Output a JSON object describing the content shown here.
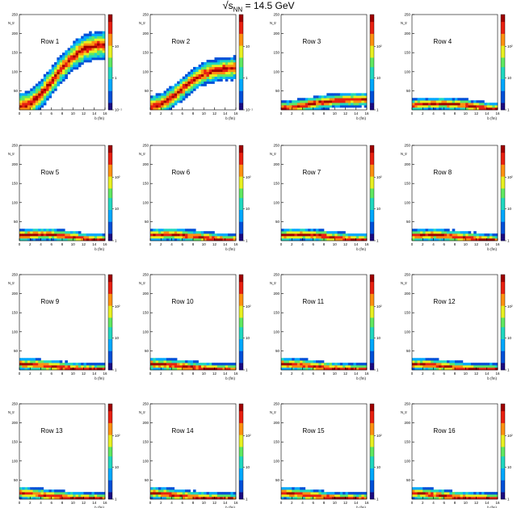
{
  "figure": {
    "title_symbol": "s",
    "title_subscript": "NN",
    "title_value": "= 14.5 GeV"
  },
  "chart_data": {
    "type": "heatmap",
    "grid": "off",
    "xlabel": "b (fm)",
    "ylabel": "N_tr",
    "xlim": [
      0,
      16
    ],
    "ylim": [
      0,
      250
    ],
    "x_ticks": [
      "0",
      "2",
      "4",
      "6",
      "8",
      "10",
      "12",
      "14",
      "16"
    ],
    "y_ticks": [
      "50",
      "100",
      "150",
      "200",
      "250"
    ],
    "colorbar_scale": "log",
    "colorbar_colors": [
      "#1a0a80",
      "#0050d8",
      "#00a8ff",
      "#20d8c0",
      "#60e860",
      "#e8f020",
      "#ff9010",
      "#e82010",
      "#a00000"
    ],
    "panels": [
      {
        "label": "Row 1",
        "cb_ticks": [
          "10",
          "1",
          "10⁻¹"
        ],
        "cb_decades": [
          2,
          1,
          0,
          -1
        ],
        "peak": [
          [
            0,
            8
          ],
          [
            2,
            15
          ],
          [
            4,
            40
          ],
          [
            6,
            75
          ],
          [
            8,
            110
          ],
          [
            10,
            140
          ],
          [
            12,
            160
          ],
          [
            14,
            168
          ],
          [
            16,
            170
          ]
        ],
        "width": 16
      },
      {
        "label": "Row 2",
        "cb_ticks": [
          "10",
          "1",
          "10⁻¹"
        ],
        "cb_decades": [
          2,
          1,
          0,
          -1
        ],
        "peak": [
          [
            0,
            8
          ],
          [
            2,
            14
          ],
          [
            4,
            32
          ],
          [
            6,
            55
          ],
          [
            8,
            78
          ],
          [
            10,
            95
          ],
          [
            12,
            103
          ],
          [
            14,
            108
          ],
          [
            16,
            110
          ]
        ],
        "width": 13
      },
      {
        "label": "Row 3",
        "cb_ticks": [
          "10²",
          "10",
          "1"
        ],
        "cb_decades": [
          3,
          2,
          1,
          0
        ],
        "peak": [
          [
            0,
            4
          ],
          [
            2,
            7
          ],
          [
            4,
            12
          ],
          [
            6,
            17
          ],
          [
            8,
            21
          ],
          [
            10,
            24
          ],
          [
            12,
            26
          ],
          [
            14,
            27
          ],
          [
            16,
            27
          ]
        ],
        "width": 8
      },
      {
        "label": "Row 4",
        "cb_ticks": [
          "10²",
          "10",
          "1"
        ],
        "cb_decades": [
          3,
          2,
          1,
          0
        ],
        "peak": [
          [
            0,
            12
          ],
          [
            2,
            15
          ],
          [
            4,
            17
          ],
          [
            6,
            16
          ],
          [
            8,
            15
          ],
          [
            10,
            12
          ],
          [
            12,
            8
          ],
          [
            14,
            4
          ],
          [
            16,
            2
          ]
        ],
        "width": 7
      },
      {
        "label": "Row 5",
        "cb_ticks": [
          "10²",
          "10",
          "1"
        ],
        "cb_decades": [
          3,
          2,
          1,
          0
        ],
        "peak": [
          [
            0,
            14
          ],
          [
            2,
            16
          ],
          [
            4,
            17
          ],
          [
            6,
            16
          ],
          [
            8,
            13
          ],
          [
            10,
            10
          ],
          [
            12,
            6
          ],
          [
            14,
            3
          ],
          [
            16,
            1
          ]
        ],
        "width": 7
      },
      {
        "label": "Row 6",
        "cb_ticks": [
          "10²",
          "10",
          "1"
        ],
        "cb_decades": [
          3,
          2,
          1,
          0
        ],
        "peak": [
          [
            0,
            14
          ],
          [
            2,
            16
          ],
          [
            4,
            17
          ],
          [
            6,
            15
          ],
          [
            8,
            12
          ],
          [
            10,
            9
          ],
          [
            12,
            5
          ],
          [
            14,
            2
          ],
          [
            16,
            1
          ]
        ],
        "width": 7
      },
      {
        "label": "Row 7",
        "cb_ticks": [
          "10²",
          "10",
          "1"
        ],
        "cb_decades": [
          3,
          2,
          1,
          0
        ],
        "peak": [
          [
            0,
            14
          ],
          [
            2,
            16
          ],
          [
            4,
            16
          ],
          [
            6,
            15
          ],
          [
            8,
            12
          ],
          [
            10,
            9
          ],
          [
            12,
            5
          ],
          [
            14,
            2
          ],
          [
            16,
            1
          ]
        ],
        "width": 7
      },
      {
        "label": "Row 8",
        "cb_ticks": [
          "10²",
          "10",
          "1"
        ],
        "cb_decades": [
          3,
          2,
          1,
          0
        ],
        "peak": [
          [
            0,
            13
          ],
          [
            2,
            15
          ],
          [
            4,
            16
          ],
          [
            6,
            14
          ],
          [
            8,
            11
          ],
          [
            10,
            8
          ],
          [
            12,
            5
          ],
          [
            14,
            2
          ],
          [
            16,
            1
          ]
        ],
        "width": 7
      },
      {
        "label": "Row 9",
        "cb_ticks": [
          "10²",
          "10",
          "1"
        ],
        "cb_decades": [
          3,
          2,
          1,
          0
        ],
        "peak": [
          [
            0,
            16
          ],
          [
            2,
            15
          ],
          [
            4,
            13
          ],
          [
            6,
            10
          ],
          [
            8,
            7
          ],
          [
            10,
            4
          ],
          [
            12,
            2
          ],
          [
            14,
            1
          ],
          [
            16,
            1
          ]
        ],
        "width": 7
      },
      {
        "label": "Row 10",
        "cb_ticks": [
          "10²",
          "10",
          "1"
        ],
        "cb_decades": [
          3,
          2,
          1,
          0
        ],
        "peak": [
          [
            0,
            16
          ],
          [
            2,
            15
          ],
          [
            4,
            13
          ],
          [
            6,
            10
          ],
          [
            8,
            7
          ],
          [
            10,
            4
          ],
          [
            12,
            2
          ],
          [
            14,
            1
          ],
          [
            16,
            1
          ]
        ],
        "width": 7
      },
      {
        "label": "Row 11",
        "cb_ticks": [
          "10²",
          "10",
          "1"
        ],
        "cb_decades": [
          3,
          2,
          1,
          0
        ],
        "peak": [
          [
            0,
            16
          ],
          [
            2,
            15
          ],
          [
            4,
            13
          ],
          [
            6,
            10
          ],
          [
            8,
            7
          ],
          [
            10,
            4
          ],
          [
            12,
            2
          ],
          [
            14,
            1
          ],
          [
            16,
            1
          ]
        ],
        "width": 7
      },
      {
        "label": "Row 12",
        "cb_ticks": [
          "10²",
          "10",
          "1"
        ],
        "cb_decades": [
          3,
          2,
          1,
          0
        ],
        "peak": [
          [
            0,
            16
          ],
          [
            2,
            15
          ],
          [
            4,
            13
          ],
          [
            6,
            10
          ],
          [
            8,
            7
          ],
          [
            10,
            4
          ],
          [
            12,
            2
          ],
          [
            14,
            1
          ],
          [
            16,
            1
          ]
        ],
        "width": 7
      },
      {
        "label": "Row 13",
        "cb_ticks": [
          "10²",
          "10",
          "1"
        ],
        "cb_decades": [
          3,
          2,
          1,
          0
        ],
        "peak": [
          [
            0,
            17
          ],
          [
            2,
            15
          ],
          [
            4,
            12
          ],
          [
            6,
            9
          ],
          [
            8,
            6
          ],
          [
            10,
            3
          ],
          [
            12,
            2
          ],
          [
            14,
            1
          ],
          [
            16,
            1
          ]
        ],
        "width": 7
      },
      {
        "label": "Row 14",
        "cb_ticks": [
          "10²",
          "10",
          "1"
        ],
        "cb_decades": [
          3,
          2,
          1,
          0
        ],
        "peak": [
          [
            0,
            17
          ],
          [
            2,
            15
          ],
          [
            4,
            12
          ],
          [
            6,
            9
          ],
          [
            8,
            6
          ],
          [
            10,
            3
          ],
          [
            12,
            2
          ],
          [
            14,
            1
          ],
          [
            16,
            1
          ]
        ],
        "width": 7
      },
      {
        "label": "Row 15",
        "cb_ticks": [
          "10²",
          "10",
          "1"
        ],
        "cb_decades": [
          3,
          2,
          1,
          0
        ],
        "peak": [
          [
            0,
            17
          ],
          [
            2,
            15
          ],
          [
            4,
            12
          ],
          [
            6,
            9
          ],
          [
            8,
            6
          ],
          [
            10,
            3
          ],
          [
            12,
            2
          ],
          [
            14,
            1
          ],
          [
            16,
            1
          ]
        ],
        "width": 7
      },
      {
        "label": "Row 16",
        "cb_ticks": [
          "10²",
          "10",
          "1"
        ],
        "cb_decades": [
          3,
          2,
          1,
          0
        ],
        "peak": [
          [
            0,
            17
          ],
          [
            2,
            15
          ],
          [
            4,
            12
          ],
          [
            6,
            9
          ],
          [
            8,
            6
          ],
          [
            10,
            3
          ],
          [
            12,
            2
          ],
          [
            14,
            1
          ],
          [
            16,
            1
          ]
        ],
        "width": 7
      }
    ]
  }
}
